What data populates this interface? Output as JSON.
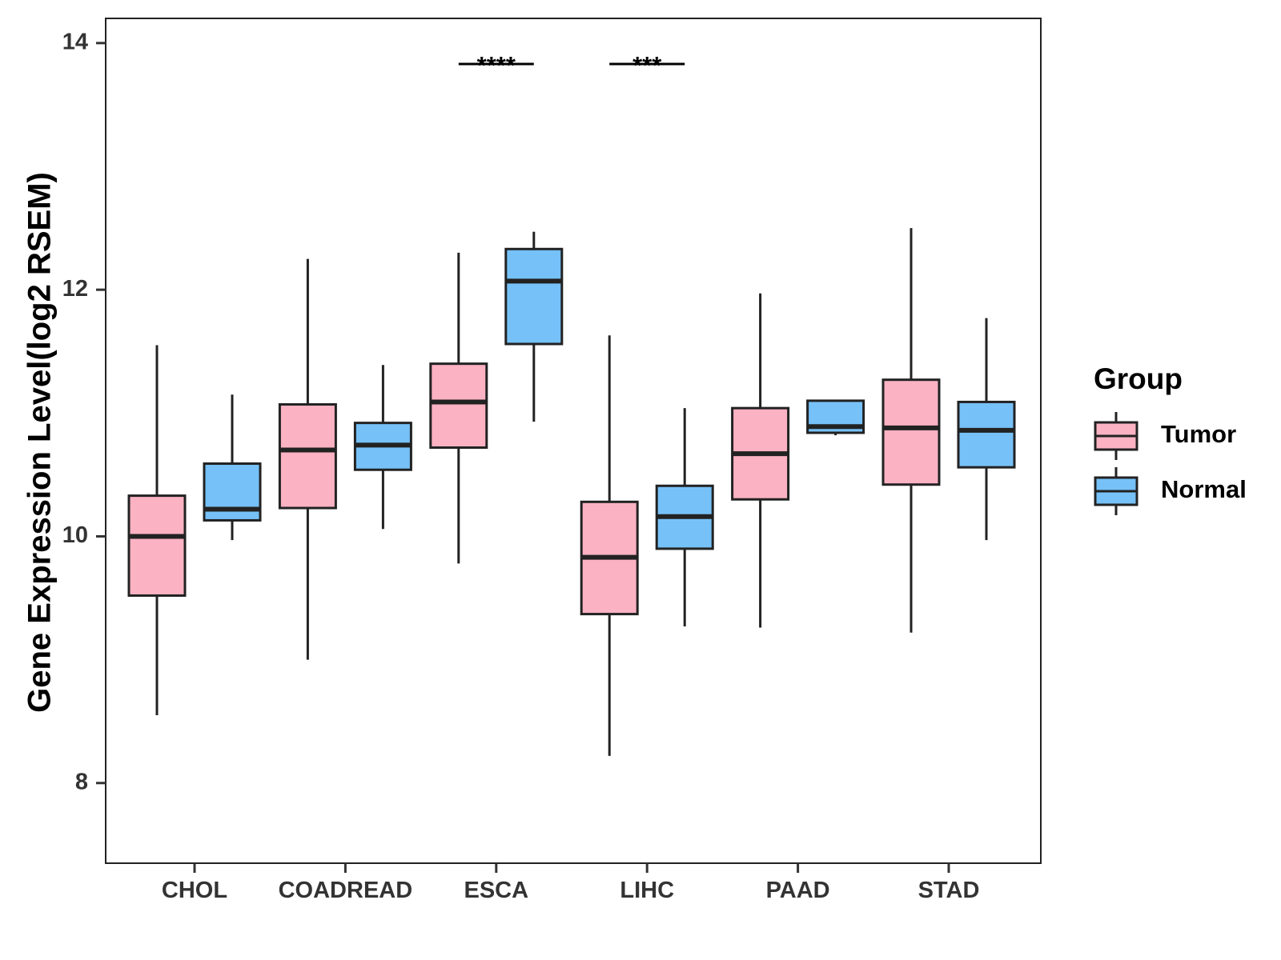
{
  "chart_data": {
    "type": "boxplot",
    "ylabel": "Gene Expression Level(log2 RSEM)",
    "y_ticks": [
      "8",
      "10",
      "12",
      "14"
    ],
    "ylim": [
      7.35,
      14.2
    ],
    "categories": [
      "CHOL",
      "COADREAD",
      "ESCA",
      "LIHC",
      "PAAD",
      "STAD"
    ],
    "legend": {
      "title": "Group",
      "placement": "right",
      "entries": [
        {
          "label": "Tumor",
          "color": "#FBB2C3"
        },
        {
          "label": "Normal",
          "color": "#76C1F7"
        }
      ]
    },
    "series": [
      {
        "name": "Tumor",
        "color": "#FBB2C3",
        "boxes": [
          {
            "min": 8.55,
            "q1": 9.52,
            "median": 10.0,
            "q3": 10.33,
            "max": 11.55
          },
          {
            "min": 9.0,
            "q1": 10.23,
            "median": 10.7,
            "q3": 11.07,
            "max": 12.25
          },
          {
            "min": 9.78,
            "q1": 10.72,
            "median": 11.09,
            "q3": 11.4,
            "max": 12.3
          },
          {
            "min": 8.22,
            "q1": 9.37,
            "median": 9.83,
            "q3": 10.28,
            "max": 11.63
          },
          {
            "min": 9.26,
            "q1": 10.3,
            "median": 10.67,
            "q3": 11.04,
            "max": 11.97
          },
          {
            "min": 9.22,
            "q1": 10.42,
            "median": 10.88,
            "q3": 11.27,
            "max": 12.5
          }
        ]
      },
      {
        "name": "Normal",
        "color": "#76C1F7",
        "boxes": [
          {
            "min": 9.97,
            "q1": 10.13,
            "median": 10.22,
            "q3": 10.59,
            "max": 11.15
          },
          {
            "min": 10.06,
            "q1": 10.54,
            "median": 10.74,
            "q3": 10.92,
            "max": 11.39
          },
          {
            "min": 10.93,
            "q1": 11.56,
            "median": 12.07,
            "q3": 12.33,
            "max": 12.47
          },
          {
            "min": 9.27,
            "q1": 9.9,
            "median": 10.16,
            "q3": 10.41,
            "max": 11.04
          },
          {
            "min": 10.82,
            "q1": 10.84,
            "median": 10.89,
            "q3": 11.1,
            "max": 11.1
          },
          {
            "min": 9.97,
            "q1": 10.56,
            "median": 10.86,
            "q3": 11.09,
            "max": 11.77
          }
        ]
      }
    ],
    "annotations": [
      {
        "category": "ESCA",
        "text": "****",
        "y": 13.83
      },
      {
        "category": "LIHC",
        "text": "***",
        "y": 13.83
      }
    ]
  }
}
